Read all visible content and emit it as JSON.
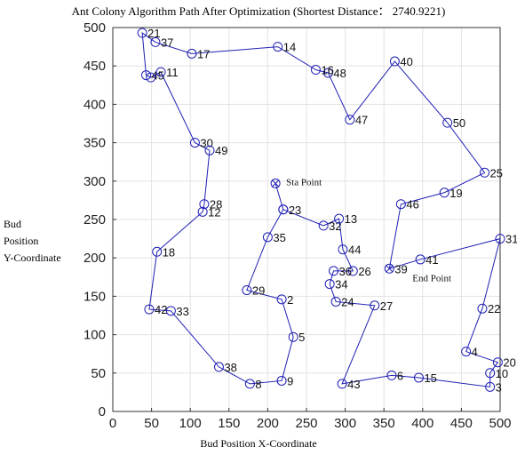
{
  "chart_data": {
    "type": "line",
    "title": "Ant Colony Algorithm Path After Optimization (Shortest Distance： 2740.9221)",
    "xlabel": "Bud Position X-Coordinate",
    "ylabel": "Bud Position Y-Coordinate",
    "ylabel_lines": [
      "Bud",
      "Position",
      "Y-Coordinate"
    ],
    "xlim": [
      0,
      500
    ],
    "ylim": [
      0,
      500
    ],
    "xticks": [
      0,
      50,
      100,
      150,
      200,
      250,
      300,
      350,
      400,
      450,
      500
    ],
    "yticks": [
      0,
      50,
      100,
      150,
      200,
      250,
      300,
      350,
      400,
      450,
      500
    ],
    "grid": true,
    "line_color": "#1f1fb4",
    "marker_color": "#1f1fb4",
    "start_label": "Sta Point",
    "end_label": "End Point",
    "points": [
      {
        "id": "1",
        "x": 210,
        "y": 297,
        "label": "",
        "marker": "x"
      },
      {
        "id": "23",
        "x": 220,
        "y": 263,
        "label": "23"
      },
      {
        "id": "32",
        "x": 272,
        "y": 242,
        "label": "32"
      },
      {
        "id": "13",
        "x": 292,
        "y": 251,
        "label": "13"
      },
      {
        "id": "44",
        "x": 297,
        "y": 211,
        "label": "44"
      },
      {
        "id": "26",
        "x": 310,
        "y": 183,
        "label": "26"
      },
      {
        "id": "36",
        "x": 285,
        "y": 183,
        "label": "36"
      },
      {
        "id": "34",
        "x": 280,
        "y": 166,
        "label": "34"
      },
      {
        "id": "24",
        "x": 288,
        "y": 143,
        "label": "24"
      },
      {
        "id": "27",
        "x": 338,
        "y": 138,
        "label": "27"
      },
      {
        "id": "43",
        "x": 296,
        "y": 36,
        "label": "43"
      },
      {
        "id": "6",
        "x": 360,
        "y": 47,
        "label": "6"
      },
      {
        "id": "15",
        "x": 395,
        "y": 44,
        "label": "15"
      },
      {
        "id": "3",
        "x": 487,
        "y": 32,
        "label": "3"
      },
      {
        "id": "10",
        "x": 487,
        "y": 50,
        "label": "10"
      },
      {
        "id": "20",
        "x": 497,
        "y": 64,
        "label": "20"
      },
      {
        "id": "4",
        "x": 456,
        "y": 78,
        "label": "4"
      },
      {
        "id": "22",
        "x": 477,
        "y": 134,
        "label": "22"
      },
      {
        "id": "31",
        "x": 500,
        "y": 225,
        "label": "31"
      },
      {
        "id": "41",
        "x": 397,
        "y": 198,
        "label": "41"
      },
      {
        "id": "39",
        "x": 357,
        "y": 186,
        "label": "39",
        "marker": "x"
      },
      {
        "id": "46",
        "x": 372,
        "y": 270,
        "label": "46"
      },
      {
        "id": "19",
        "x": 428,
        "y": 285,
        "label": "19"
      },
      {
        "id": "25",
        "x": 480,
        "y": 311,
        "label": "25"
      },
      {
        "id": "50",
        "x": 432,
        "y": 376,
        "label": "50"
      },
      {
        "id": "40",
        "x": 364,
        "y": 456,
        "label": "40"
      },
      {
        "id": "47",
        "x": 306,
        "y": 380,
        "label": "47"
      },
      {
        "id": "48",
        "x": 278,
        "y": 441,
        "label": "48"
      },
      {
        "id": "16",
        "x": 262,
        "y": 445,
        "label": "16"
      },
      {
        "id": "14",
        "x": 213,
        "y": 475,
        "label": "14"
      },
      {
        "id": "17",
        "x": 102,
        "y": 466,
        "label": "17"
      },
      {
        "id": "37",
        "x": 55,
        "y": 481,
        "label": "37"
      },
      {
        "id": "21",
        "x": 38,
        "y": 493,
        "label": "21"
      },
      {
        "id": "45",
        "x": 43,
        "y": 438,
        "label": "45"
      },
      {
        "id": "5a",
        "x": 49,
        "y": 435,
        "label": ""
      },
      {
        "id": "11",
        "x": 62,
        "y": 442,
        "label": "11"
      },
      {
        "id": "30",
        "x": 106,
        "y": 350,
        "label": "30"
      },
      {
        "id": "49",
        "x": 125,
        "y": 340,
        "label": "49"
      },
      {
        "id": "28",
        "x": 118,
        "y": 270,
        "label": "28"
      },
      {
        "id": "12",
        "x": 116,
        "y": 260,
        "label": "12"
      },
      {
        "id": "18",
        "x": 57,
        "y": 208,
        "label": "18"
      },
      {
        "id": "42",
        "x": 47,
        "y": 133,
        "label": "42"
      },
      {
        "id": "33",
        "x": 75,
        "y": 131,
        "label": "33"
      },
      {
        "id": "38",
        "x": 137,
        "y": 58,
        "label": "38"
      },
      {
        "id": "8",
        "x": 177,
        "y": 36,
        "label": "8"
      },
      {
        "id": "9",
        "x": 218,
        "y": 40,
        "label": "9"
      },
      {
        "id": "5",
        "x": 233,
        "y": 97,
        "label": "5"
      },
      {
        "id": "2",
        "x": 218,
        "y": 146,
        "label": "2"
      },
      {
        "id": "29",
        "x": 173,
        "y": 158,
        "label": "29"
      },
      {
        "id": "35",
        "x": 200,
        "y": 227,
        "label": "35"
      },
      {
        "id": "7",
        "x": 220,
        "y": 263,
        "label": ""
      }
    ]
  }
}
